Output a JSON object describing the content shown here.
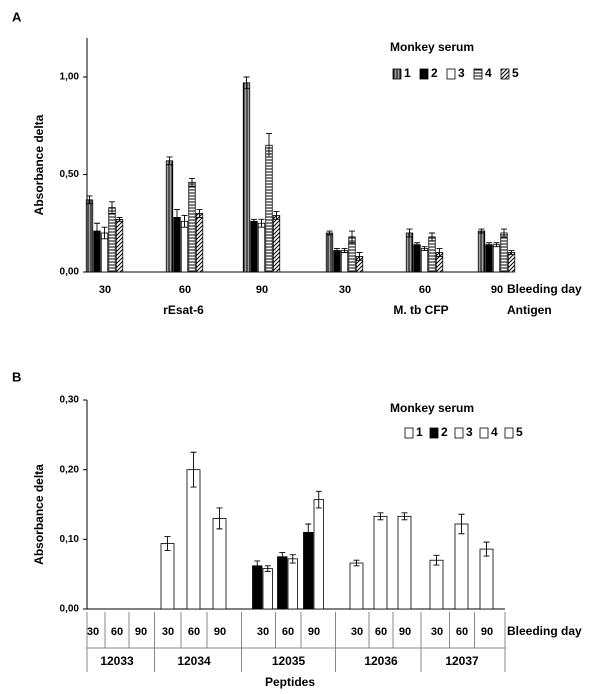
{
  "chart_data": [
    {
      "type": "bar",
      "panel_label": "A",
      "legend_title": "Monkey serum",
      "y_label": "Absorbance delta",
      "x_label": "Bleeding day",
      "group_label": "Antigen",
      "categories": [
        "30",
        "60",
        "90",
        "30",
        "60",
        "90"
      ],
      "groups": [
        "rEsat-6",
        "M. tb CFP"
      ],
      "ylim": [
        0,
        1.2
      ],
      "yticks": [
        {
          "value": 0,
          "label": "0,00"
        },
        {
          "value": 0.5,
          "label": "0,50"
        },
        {
          "value": 1.0,
          "label": "1,00"
        }
      ],
      "series": [
        {
          "name": "1",
          "color": "#a0a0a0",
          "pattern": "vertical",
          "values": [
            0.37,
            0.57,
            0.97,
            0.2,
            0.2,
            0.21
          ],
          "errors": [
            0.02,
            0.02,
            0.03,
            0.01,
            0.02,
            0.01
          ]
        },
        {
          "name": "2",
          "color": "#000000",
          "pattern": "solid",
          "values": [
            0.21,
            0.28,
            0.26,
            0.11,
            0.14,
            0.14
          ],
          "errors": [
            0.04,
            0.04,
            0.01,
            0.01,
            0.01,
            0.01
          ]
        },
        {
          "name": "3",
          "color": "#ffffff",
          "pattern": "solid",
          "values": [
            0.2,
            0.26,
            0.25,
            0.11,
            0.12,
            0.14
          ],
          "errors": [
            0.03,
            0.03,
            0.02,
            0.01,
            0.01,
            0.01
          ]
        },
        {
          "name": "4",
          "color": "#ffffff",
          "pattern": "horizontal",
          "values": [
            0.33,
            0.46,
            0.65,
            0.18,
            0.18,
            0.2
          ],
          "errors": [
            0.03,
            0.02,
            0.06,
            0.03,
            0.02,
            0.02
          ]
        },
        {
          "name": "5",
          "color": "#ffffff",
          "pattern": "diagonal",
          "values": [
            0.27,
            0.3,
            0.29,
            0.08,
            0.1,
            0.1
          ],
          "errors": [
            0.01,
            0.02,
            0.02,
            0.02,
            0.02,
            0.01
          ]
        }
      ]
    },
    {
      "type": "bar",
      "panel_label": "B",
      "legend_title": "Monkey serum",
      "y_label": "Absorbance delta",
      "x_label": "Bleeding day",
      "group_label": "Peptides",
      "categories": [
        "30",
        "60",
        "90",
        "30",
        "60",
        "90",
        "30",
        "60",
        "90",
        "30",
        "60",
        "90",
        "30",
        "60",
        "90"
      ],
      "groups": [
        "12033",
        "12034",
        "12035",
        "12036",
        "12037"
      ],
      "ylim": [
        0,
        0.3
      ],
      "yticks": [
        {
          "value": 0,
          "label": "0,00"
        },
        {
          "value": 0.1,
          "label": "0,10"
        },
        {
          "value": 0.2,
          "label": "0,20"
        },
        {
          "value": 0.3,
          "label": "0,30"
        }
      ],
      "series": [
        {
          "name": "1",
          "color": "#ffffff",
          "pattern": "solid",
          "values": [
            null,
            null,
            null,
            0.094,
            0.2,
            0.13,
            null,
            null,
            null,
            null,
            null,
            null,
            null,
            null,
            null
          ],
          "errors": [
            null,
            null,
            null,
            0.01,
            0.025,
            0.015,
            null,
            null,
            null,
            null,
            null,
            null,
            null,
            null,
            null
          ]
        },
        {
          "name": "2",
          "color": "#000000",
          "pattern": "solid",
          "values": [
            null,
            null,
            null,
            null,
            null,
            null,
            0.062,
            0.075,
            0.11,
            null,
            null,
            null,
            null,
            null,
            null
          ],
          "errors": [
            null,
            null,
            null,
            null,
            null,
            null,
            0.007,
            0.006,
            0.012,
            null,
            null,
            null,
            null,
            null,
            null
          ]
        },
        {
          "name": "3",
          "color": "#ffffff",
          "pattern": "solid",
          "values": [
            null,
            null,
            null,
            null,
            null,
            null,
            0.058,
            0.072,
            0.157,
            null,
            null,
            null,
            null,
            null,
            null
          ],
          "errors": [
            null,
            null,
            null,
            null,
            null,
            null,
            0.004,
            0.006,
            0.012,
            null,
            null,
            null,
            null,
            null,
            null
          ]
        },
        {
          "name": "4",
          "color": "#ffffff",
          "pattern": "solid",
          "values": [
            null,
            null,
            null,
            null,
            null,
            null,
            null,
            null,
            null,
            0.066,
            0.133,
            0.133,
            null,
            null,
            null
          ],
          "errors": [
            null,
            null,
            null,
            null,
            null,
            null,
            null,
            null,
            null,
            0.004,
            0.005,
            0.005,
            null,
            null,
            null
          ]
        },
        {
          "name": "5",
          "color": "#ffffff",
          "pattern": "solid",
          "values": [
            null,
            null,
            null,
            null,
            null,
            null,
            null,
            null,
            null,
            null,
            null,
            null,
            0.07,
            0.122,
            0.086
          ],
          "errors": [
            null,
            null,
            null,
            null,
            null,
            null,
            null,
            null,
            null,
            null,
            null,
            null,
            0.007,
            0.014,
            0.01
          ]
        }
      ]
    }
  ]
}
